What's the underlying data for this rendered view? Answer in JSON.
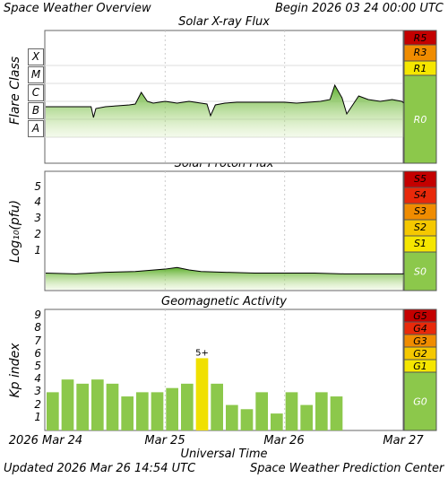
{
  "header": {
    "title": "Space Weather Overview",
    "begin": "Begin 2026 03 24 00:00 UTC"
  },
  "footer": {
    "updated": "Updated 2026 Mar 26 14:54 UTC",
    "center": "Space Weather Prediction Center"
  },
  "colors": {
    "green": "#8cc84b",
    "yellow": "#f5e600",
    "r5_g5": "#c40000",
    "r4_g4": "#e8290a",
    "r3_g3": "#f08c00",
    "r2_g2": "#f5c800",
    "r1_g1": "#f5e600",
    "bar": "#8cc84b",
    "highlight_bar": "#f0e000"
  },
  "x_axis": {
    "label": "Universal Time",
    "ticks": [
      "2026 Mar 24",
      "Mar 25",
      "Mar 26",
      "Mar 27"
    ]
  },
  "chart_data": [
    {
      "type": "line",
      "title": "Solar X-ray Flux",
      "ylabel": "Flare Class",
      "y_classes": [
        "A",
        "B",
        "C",
        "M",
        "X"
      ],
      "x_days": [
        0,
        0.1,
        0.2,
        0.3,
        0.38,
        0.4,
        0.42,
        0.5,
        0.6,
        0.7,
        0.75,
        0.8,
        0.85,
        0.9,
        1.0,
        1.1,
        1.2,
        1.3,
        1.35,
        1.38,
        1.42,
        1.5,
        1.6,
        1.7,
        1.8,
        1.9,
        2.0,
        2.1,
        2.2,
        2.3,
        2.38,
        2.42,
        2.48,
        2.52,
        2.58,
        2.62,
        2.7,
        2.8,
        2.9,
        2.98,
        3.0
      ],
      "class_values": [
        1.7,
        1.7,
        1.7,
        1.7,
        1.7,
        1.1,
        1.6,
        1.7,
        1.75,
        1.8,
        1.85,
        2.5,
        2.0,
        1.9,
        2.0,
        1.9,
        2.0,
        1.9,
        1.85,
        1.2,
        1.8,
        1.9,
        1.95,
        1.95,
        1.95,
        1.95,
        1.95,
        1.9,
        1.95,
        2.0,
        2.1,
        2.9,
        2.2,
        1.3,
        1.9,
        2.3,
        2.1,
        2.0,
        2.1,
        2.0,
        1.9
      ],
      "scale": [
        "R5",
        "R3",
        "R1",
        "R0"
      ]
    },
    {
      "type": "line",
      "title": "Solar Proton Flux",
      "ylabel": "Log₁₀(pfu)",
      "ylim": [
        -1.5,
        6
      ],
      "yticks": [
        1,
        2,
        3,
        4,
        5
      ],
      "x_days": [
        0,
        0.25,
        0.5,
        0.75,
        1.0,
        1.1,
        1.2,
        1.3,
        1.5,
        1.75,
        2.0,
        2.25,
        2.5,
        2.75,
        3.0
      ],
      "values": [
        -0.4,
        -0.45,
        -0.35,
        -0.3,
        -0.15,
        -0.05,
        -0.2,
        -0.3,
        -0.35,
        -0.4,
        -0.4,
        -0.4,
        -0.45,
        -0.45,
        -0.45
      ],
      "scale": [
        "S5",
        "S4",
        "S3",
        "S2",
        "S1",
        "S0"
      ]
    },
    {
      "type": "bar",
      "title": "Geomagnetic Activity",
      "ylabel": "Kp index",
      "ylim": [
        0,
        9.5
      ],
      "yticks": [
        1,
        2,
        3,
        4,
        5,
        6,
        7,
        8,
        9
      ],
      "kp": [
        3.0,
        4.0,
        3.67,
        4.0,
        3.67,
        2.67,
        3.0,
        3.0,
        3.33,
        3.67,
        5.67,
        3.67,
        2.0,
        1.67,
        3.0,
        1.33,
        3.0,
        2.0,
        3.0,
        2.67
      ],
      "labels": [
        "",
        "",
        "",
        "",
        "",
        "",
        "",
        "",
        "",
        "",
        "5+",
        "",
        "",
        "",
        "",
        "",
        "",
        "",
        "",
        ""
      ],
      "scale": [
        "G5",
        "G4",
        "G3",
        "G2",
        "G1",
        "G0"
      ]
    }
  ]
}
